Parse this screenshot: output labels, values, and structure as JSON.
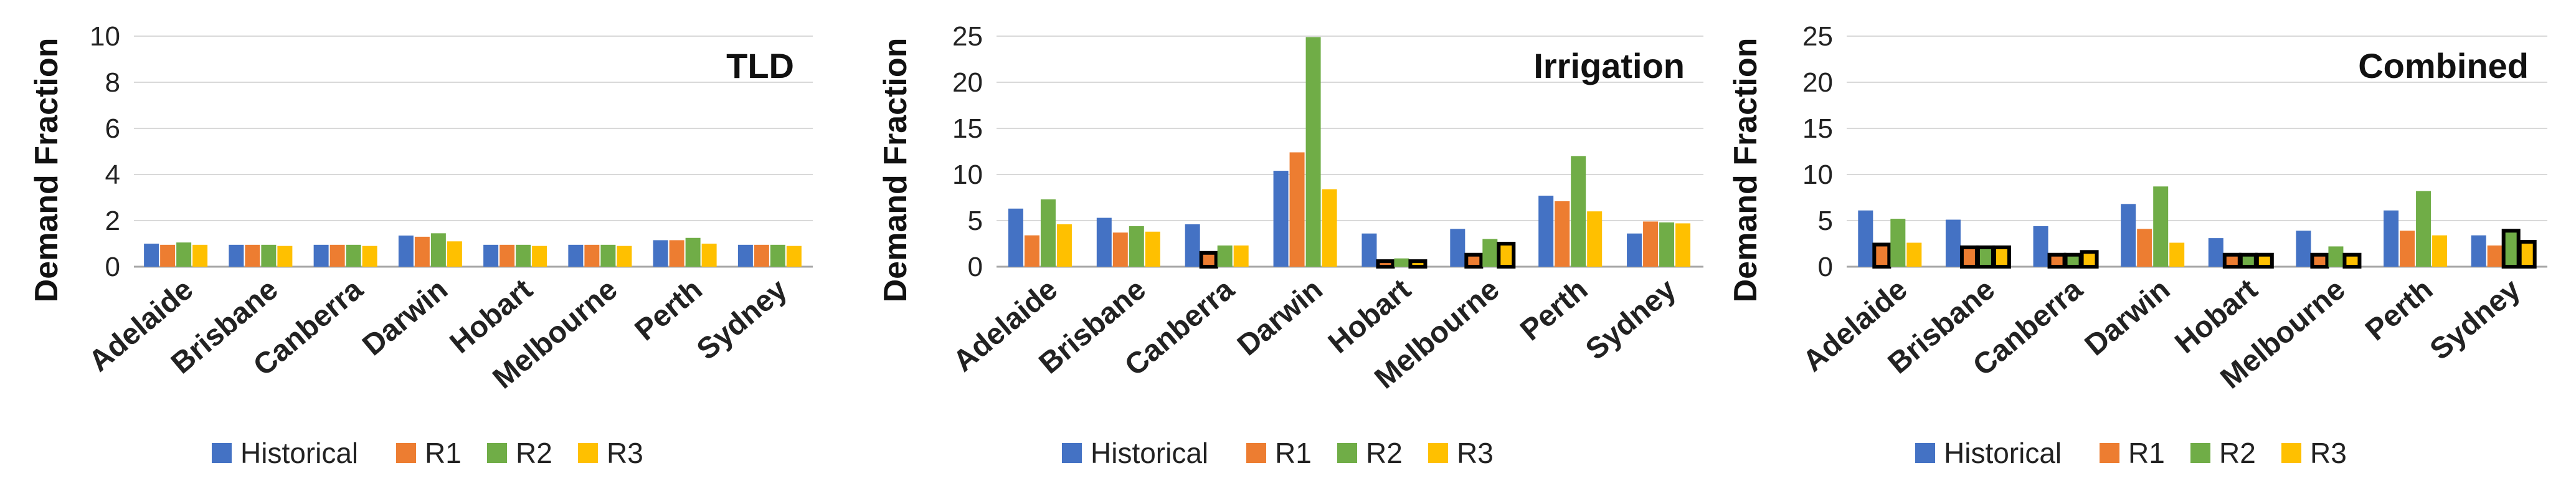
{
  "colors": {
    "Historical": "#4472C4",
    "R1": "#ED7D31",
    "R2": "#70AD47",
    "R3": "#FFC000",
    "grid": "#D9D9D9",
    "axis": "#A6A6A6",
    "highlight": "#000000"
  },
  "chart_data": [
    {
      "type": "bar",
      "title": "TLD",
      "ylabel": "Demand Fraction",
      "xlabel": "",
      "ylim": [
        0,
        10
      ],
      "yticks": [
        "0",
        "2",
        "4",
        "6",
        "8",
        "10"
      ],
      "grid": true,
      "legend": "bottom",
      "categories": [
        "Adelaide",
        "Brisbane",
        "Canberra",
        "Darwin",
        "Hobart",
        "Melbourne",
        "Perth",
        "Sydney"
      ],
      "series": [
        {
          "name": "Historical",
          "values": [
            1.0,
            0.95,
            0.95,
            1.35,
            0.95,
            0.95,
            1.15,
            0.95
          ]
        },
        {
          "name": "R1",
          "values": [
            0.95,
            0.95,
            0.95,
            1.3,
            0.95,
            0.95,
            1.15,
            0.95
          ]
        },
        {
          "name": "R2",
          "values": [
            1.05,
            0.95,
            0.95,
            1.45,
            0.95,
            0.95,
            1.25,
            0.95
          ]
        },
        {
          "name": "R3",
          "values": [
            0.95,
            0.9,
            0.9,
            1.1,
            0.9,
            0.9,
            1.0,
            0.9
          ]
        }
      ],
      "highlighted": []
    },
    {
      "type": "bar",
      "title": "Irrigation",
      "ylabel": "Demand Fraction",
      "xlabel": "",
      "ylim": [
        0,
        25
      ],
      "yticks": [
        "0",
        "5",
        "10",
        "15",
        "20",
        "25"
      ],
      "grid": true,
      "legend": "bottom",
      "categories": [
        "Adelaide",
        "Brisbane",
        "Canberra",
        "Darwin",
        "Hobart",
        "Melbourne",
        "Perth",
        "Sydney"
      ],
      "series": [
        {
          "name": "Historical",
          "values": [
            6.3,
            5.3,
            4.6,
            10.4,
            3.6,
            4.1,
            7.7,
            3.6
          ]
        },
        {
          "name": "R1",
          "values": [
            3.4,
            3.7,
            1.5,
            12.4,
            0.6,
            1.3,
            7.1,
            4.9
          ]
        },
        {
          "name": "R2",
          "values": [
            7.3,
            4.4,
            2.3,
            24.9,
            0.9,
            3.0,
            12.0,
            4.8
          ]
        },
        {
          "name": "R3",
          "values": [
            4.6,
            3.8,
            2.3,
            8.4,
            0.6,
            2.5,
            6.0,
            4.7
          ]
        }
      ],
      "highlighted": [
        [
          2,
          1
        ],
        [
          4,
          1
        ],
        [
          4,
          3
        ],
        [
          5,
          1
        ],
        [
          5,
          3
        ]
      ]
    },
    {
      "type": "bar",
      "title": "Combined",
      "ylabel": "Demand Fraction",
      "xlabel": "",
      "ylim": [
        0,
        25
      ],
      "yticks": [
        "0",
        "5",
        "10",
        "15",
        "20",
        "25"
      ],
      "grid": true,
      "legend": "bottom",
      "categories": [
        "Adelaide",
        "Brisbane",
        "Canberra",
        "Darwin",
        "Hobart",
        "Melbourne",
        "Perth",
        "Sydney"
      ],
      "series": [
        {
          "name": "Historical",
          "values": [
            6.1,
            5.1,
            4.4,
            6.8,
            3.1,
            3.9,
            6.1,
            3.4
          ]
        },
        {
          "name": "R1",
          "values": [
            2.4,
            2.1,
            1.3,
            4.1,
            1.3,
            1.3,
            3.9,
            2.3
          ]
        },
        {
          "name": "R2",
          "values": [
            5.2,
            2.1,
            1.3,
            8.7,
            1.3,
            2.2,
            8.2,
            3.9
          ]
        },
        {
          "name": "R3",
          "values": [
            2.6,
            2.1,
            1.6,
            2.6,
            1.3,
            1.3,
            3.4,
            2.7
          ]
        }
      ],
      "highlighted": [
        [
          0,
          1
        ],
        [
          1,
          1
        ],
        [
          1,
          2
        ],
        [
          1,
          3
        ],
        [
          2,
          1
        ],
        [
          2,
          2
        ],
        [
          2,
          3
        ],
        [
          4,
          1
        ],
        [
          4,
          2
        ],
        [
          4,
          3
        ],
        [
          5,
          1
        ],
        [
          5,
          3
        ],
        [
          7,
          2
        ],
        [
          7,
          3
        ]
      ]
    }
  ]
}
